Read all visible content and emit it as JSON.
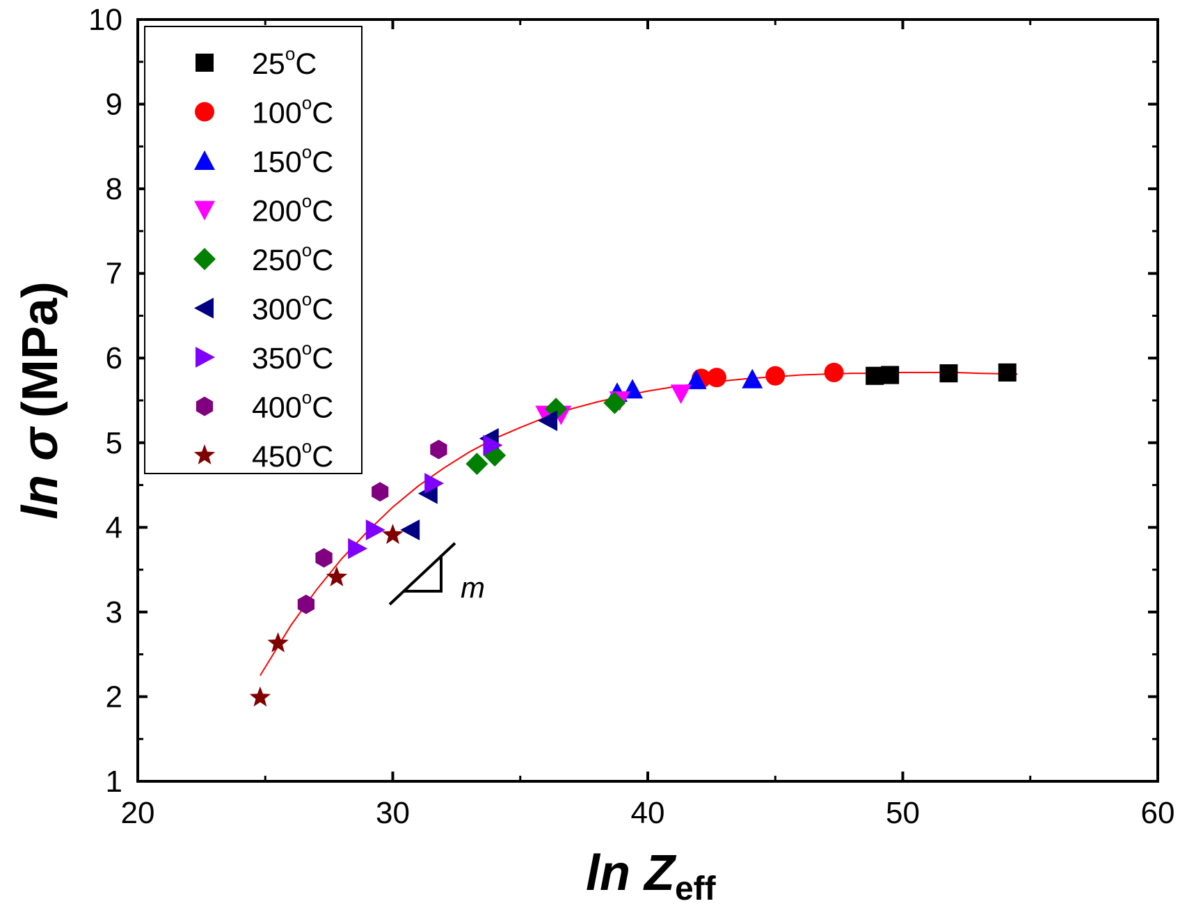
{
  "chart_data": {
    "type": "scatter",
    "title": "",
    "xlabel": {
      "main": "ln Z",
      "sub": "eff"
    },
    "ylabel": {
      "main": "ln σ",
      "unit": "(MPa)"
    },
    "xlim": [
      20,
      60
    ],
    "ylim": [
      1,
      10
    ],
    "xticks": [
      "20",
      "30",
      "40",
      "50",
      "60"
    ],
    "yticks": [
      "1",
      "2",
      "3",
      "4",
      "5",
      "6",
      "7",
      "8",
      "9",
      "10"
    ],
    "legend_position": "top-left",
    "series": [
      {
        "name": "25°C",
        "temp": "25",
        "unit": "C",
        "marker": "square",
        "color": "#000000",
        "points": [
          [
            48.9,
            5.79
          ],
          [
            49.5,
            5.8
          ],
          [
            51.8,
            5.82
          ],
          [
            54.1,
            5.83
          ]
        ]
      },
      {
        "name": "100°C",
        "temp": "100",
        "unit": "C",
        "marker": "circle",
        "color": "#ff0000",
        "points": [
          [
            42.1,
            5.76
          ],
          [
            42.7,
            5.77
          ],
          [
            45.0,
            5.79
          ],
          [
            47.3,
            5.83
          ]
        ]
      },
      {
        "name": "150°C",
        "temp": "150",
        "unit": "C",
        "marker": "triangle-up",
        "color": "#0000ff",
        "points": [
          [
            38.8,
            5.59
          ],
          [
            39.4,
            5.63
          ],
          [
            41.9,
            5.74
          ],
          [
            44.1,
            5.75
          ]
        ]
      },
      {
        "name": "200°C",
        "temp": "200",
        "unit": "C",
        "marker": "triangle-down",
        "color": "#ff00ff",
        "points": [
          [
            36.0,
            5.33
          ],
          [
            36.6,
            5.33
          ],
          [
            38.9,
            5.5
          ],
          [
            41.3,
            5.58
          ]
        ]
      },
      {
        "name": "250°C",
        "temp": "250",
        "unit": "C",
        "marker": "diamond",
        "color": "#008000",
        "points": [
          [
            33.3,
            4.75
          ],
          [
            34.0,
            4.85
          ],
          [
            36.4,
            5.4
          ],
          [
            38.7,
            5.47
          ]
        ]
      },
      {
        "name": "300°C",
        "temp": "300",
        "unit": "C",
        "marker": "triangle-left",
        "color": "#000080",
        "points": [
          [
            30.7,
            3.97
          ],
          [
            31.4,
            4.4
          ],
          [
            33.8,
            5.05
          ],
          [
            36.1,
            5.26
          ]
        ]
      },
      {
        "name": "350°C",
        "temp": "350",
        "unit": "C",
        "marker": "triangle-right",
        "color": "#8000ff",
        "points": [
          [
            28.6,
            3.75
          ],
          [
            29.3,
            3.97
          ],
          [
            31.6,
            4.52
          ],
          [
            33.9,
            4.97
          ]
        ]
      },
      {
        "name": "400°C",
        "temp": "400",
        "unit": "C",
        "marker": "hexagon",
        "color": "#800080",
        "points": [
          [
            26.6,
            3.09
          ],
          [
            27.3,
            3.64
          ],
          [
            29.5,
            4.42
          ],
          [
            31.8,
            4.92
          ]
        ]
      },
      {
        "name": "450°C",
        "temp": "450",
        "unit": "C",
        "marker": "star",
        "color": "#800000",
        "points": [
          [
            24.8,
            1.99
          ],
          [
            25.5,
            2.63
          ],
          [
            27.8,
            3.41
          ],
          [
            30.0,
            3.91
          ]
        ]
      }
    ],
    "fit_curve": {
      "color": "#ff0000",
      "x_range": [
        24.8,
        54.5
      ],
      "points": [
        [
          24.8,
          2.25
        ],
        [
          26.0,
          2.84
        ],
        [
          27.0,
          3.26
        ],
        [
          28.0,
          3.63
        ],
        [
          29.0,
          3.95
        ],
        [
          30.0,
          4.24
        ],
        [
          31.0,
          4.49
        ],
        [
          32.0,
          4.7
        ],
        [
          33.0,
          4.89
        ],
        [
          34.0,
          5.05
        ],
        [
          35.0,
          5.18
        ],
        [
          36.0,
          5.3
        ],
        [
          37.0,
          5.4
        ],
        [
          38.0,
          5.48
        ],
        [
          39.0,
          5.55
        ],
        [
          40.0,
          5.61
        ],
        [
          41.0,
          5.66
        ],
        [
          42.0,
          5.7
        ],
        [
          43.0,
          5.73
        ],
        [
          44.0,
          5.76
        ],
        [
          45.0,
          5.78
        ],
        [
          46.0,
          5.8
        ],
        [
          47.0,
          5.81
        ],
        [
          48.0,
          5.82
        ],
        [
          49.0,
          5.82
        ],
        [
          50.0,
          5.83
        ],
        [
          51.0,
          5.83
        ],
        [
          52.0,
          5.83
        ],
        [
          53.0,
          5.82
        ],
        [
          54.5,
          5.81
        ]
      ]
    },
    "annotation": {
      "text": "m",
      "description": "slope triangle"
    }
  }
}
